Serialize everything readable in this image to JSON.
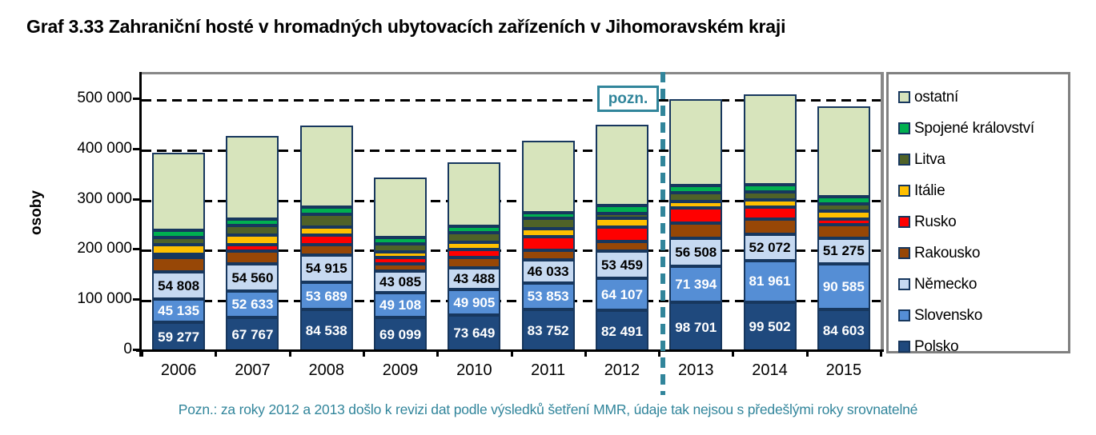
{
  "title": "Graf 3.33 Zahraniční hosté v hromadných ubytovacích zařízeních v Jihomoravském kraji",
  "ylabel": "osoby",
  "pozn_label": "pozn.",
  "footnote": "Pozn.: za roky 2012 a 2013 došlo k revizi dat podle výsledků šetření  MMR, údaje tak nejsou s předešlými roky srovnatelné",
  "colors": {
    "segment_border": "#17375E",
    "note_teal": "#31859B",
    "legend_border": "#808080",
    "axis_black": "#000000"
  },
  "chart_data": {
    "type": "bar",
    "stacked": true,
    "title": "Graf 3.33 Zahraniční hosté v hromadných ubytovacích zařízeních v Jihomoravském kraji",
    "xlabel": "",
    "ylabel": "osoby",
    "ylim": [
      0,
      550000
    ],
    "grid": "horizontal dashed black lines every 100 000",
    "legend_position": "right",
    "divider_between": [
      "2012",
      "2013"
    ],
    "categories": [
      "2006",
      "2007",
      "2008",
      "2009",
      "2010",
      "2011",
      "2012",
      "2013",
      "2014",
      "2015"
    ],
    "yticks": {
      "values": [
        0,
        100000,
        200000,
        300000,
        400000,
        500000
      ],
      "labels": [
        "0",
        "100 000",
        "200 000",
        "300 000",
        "400 000",
        "500 000"
      ]
    },
    "series": [
      {
        "name": "Polsko",
        "color": "#1F497D",
        "label_color": "#FFFFFF",
        "values": [
          59277,
          67767,
          84538,
          69099,
          73649,
          83752,
          82491,
          98701,
          99502,
          84603
        ],
        "labels": [
          "59 277",
          "67 767",
          "84 538",
          "69 099",
          "73 649",
          "83 752",
          "82 491",
          "98 701",
          "99 502",
          "84 603"
        ]
      },
      {
        "name": "Slovensko",
        "color": "#558ED5",
        "label_color": "#FFFFFF",
        "values": [
          45135,
          52633,
          53689,
          49108,
          49905,
          53853,
          64107,
          71394,
          81961,
          90585
        ],
        "labels": [
          "45 135",
          "52 633",
          "53 689",
          "49 108",
          "49 905",
          "53 853",
          "64 107",
          "71 394",
          "81 961",
          "90 585"
        ]
      },
      {
        "name": "Německo",
        "color": "#C6D9F1",
        "label_color": "#000000",
        "values": [
          54808,
          54560,
          54915,
          43085,
          43488,
          46033,
          53459,
          56508,
          52072,
          51275
        ],
        "labels": [
          "54 808",
          "54 560",
          "54 915",
          "43 085",
          "43 488",
          "46 033",
          "53 459",
          "56 508",
          "52 072",
          "51 275"
        ]
      },
      {
        "name": "Rakousko",
        "color": "#974706",
        "values": [
          28000,
          25600,
          20000,
          14000,
          21500,
          18600,
          20300,
          29300,
          30400,
          26600
        ],
        "estimated": true
      },
      {
        "name": "Rusko",
        "color": "#FF0000",
        "values": [
          7500,
          13500,
          18700,
          12000,
          16000,
          26800,
          27700,
          30400,
          24000,
          11700
        ],
        "estimated": true
      },
      {
        "name": "Itálie",
        "color": "#FFC000",
        "values": [
          19000,
          18700,
          16000,
          12500,
          13900,
          16000,
          18700,
          13500,
          14900,
          14900
        ],
        "estimated": true
      },
      {
        "name": "Litva",
        "color": "#4F6228",
        "values": [
          14000,
          18700,
          26600,
          15000,
          19200,
          21300,
          9100,
          17600,
          16000,
          14900
        ],
        "estimated": true
      },
      {
        "name": "Spojené království",
        "color": "#00B050",
        "values": [
          14300,
          13500,
          13300,
          12400,
          12300,
          10600,
          16000,
          13300,
          13300,
          14900
        ],
        "estimated": true
      },
      {
        "name": "ostatní",
        "color": "#D7E4BC",
        "values": [
          155000,
          165000,
          162300,
          119800,
          128100,
          144100,
          161100,
          173300,
          180900,
          179500
        ],
        "estimated": true
      }
    ]
  },
  "legend": {
    "items": [
      {
        "label": "ostatní",
        "color": "#D7E4BC"
      },
      {
        "label": "Spojené království",
        "color": "#00B050"
      },
      {
        "label": "Litva",
        "color": "#4F6228"
      },
      {
        "label": "Itálie",
        "color": "#FFC000"
      },
      {
        "label": "Rusko",
        "color": "#FF0000"
      },
      {
        "label": "Rakousko",
        "color": "#974706"
      },
      {
        "label": "Německo",
        "color": "#C6D9F1"
      },
      {
        "label": "Slovensko",
        "color": "#558ED5"
      },
      {
        "label": "Polsko",
        "color": "#1F497D"
      }
    ]
  }
}
